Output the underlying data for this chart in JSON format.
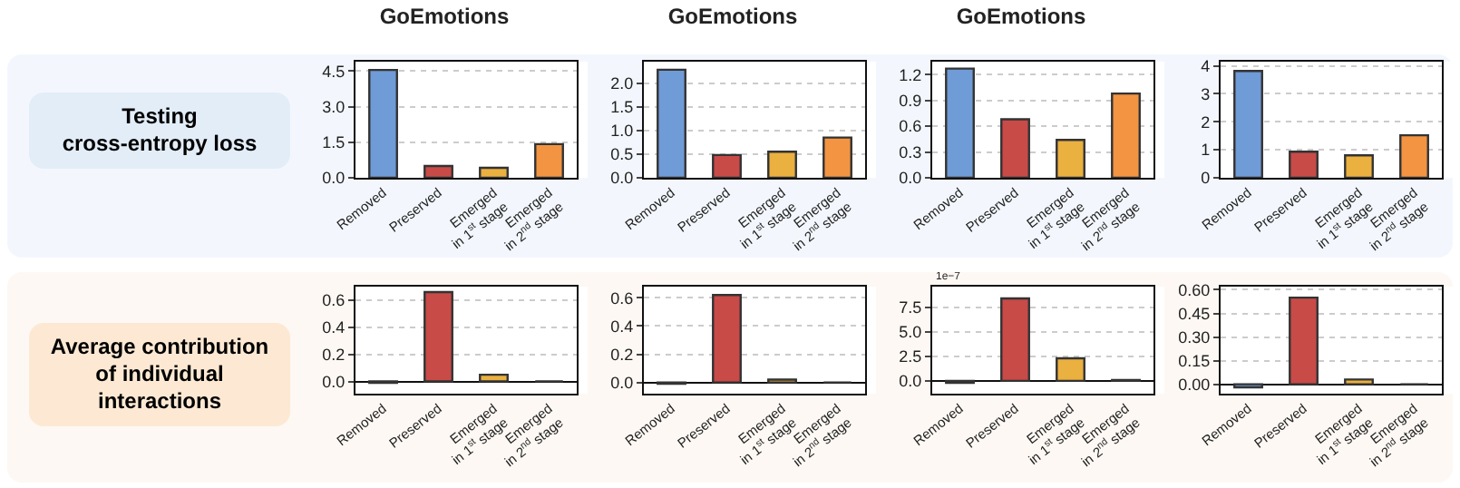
{
  "chart_data": [
    {
      "type": "bar",
      "title": "GoEmotions",
      "ylabel": "Testing\ncross-entropy loss",
      "categories": [
        "Removed",
        "Preserved",
        "Emerged\nin 1$^{st}$ stage",
        "Emerged\nin 2$^{nd}$ stage"
      ],
      "values": [
        4.55,
        0.5,
        0.42,
        1.42
      ],
      "colors": [
        "#6f9bd6",
        "#c84b48",
        "#eab040",
        "#f29442"
      ],
      "ylim": [
        0,
        4.9
      ],
      "yticks": [
        {
          "value": 0,
          "label": "0.0"
        },
        1.5,
        {
          "value": 3,
          "label": "3.0"
        },
        4.5
      ],
      "grid": "y"
    },
    {
      "type": "bar",
      "title": "GoEmotions",
      "categories": [
        "Removed",
        "Preserved",
        "Emerged\nin 1$^{st}$ stage",
        "Emerged\nin 2$^{nd}$ stage"
      ],
      "values": [
        2.28,
        0.48,
        0.55,
        0.85
      ],
      "colors": [
        "#6f9bd6",
        "#c84b48",
        "#eab040",
        "#f29442"
      ],
      "ylim": [
        0,
        2.45
      ],
      "yticks": [
        {
          "value": 0,
          "label": "0.0"
        },
        0.5,
        {
          "value": 1,
          "label": "1.0"
        },
        1.5,
        {
          "value": 2,
          "label": "2.0"
        }
      ],
      "grid": "y"
    },
    {
      "type": "bar",
      "title": "GoEmotions",
      "categories": [
        "Removed",
        "Preserved",
        "Emerged\nin 1$^{st}$ stage",
        "Emerged\nin 2$^{nd}$ stage"
      ],
      "values": [
        1.27,
        0.68,
        0.44,
        0.98
      ],
      "colors": [
        "#6f9bd6",
        "#c84b48",
        "#eab040",
        "#f29442"
      ],
      "ylim": [
        0,
        1.35
      ],
      "yticks": [
        {
          "value": 0,
          "label": "0.0"
        },
        0.3,
        0.6,
        0.9,
        1.2
      ],
      "grid": "y"
    },
    {
      "type": "bar",
      "categories": [
        "Removed",
        "Preserved",
        "Emerged\nin 1$^{st}$ stage",
        "Emerged\nin 2$^{nd}$ stage"
      ],
      "values": [
        3.82,
        0.93,
        0.8,
        1.52
      ],
      "colors": [
        "#6f9bd6",
        "#c84b48",
        "#eab040",
        "#f29442"
      ],
      "ylim": [
        0,
        4.15
      ],
      "yticks": [
        0,
        1,
        2,
        3,
        4
      ],
      "grid": "y"
    },
    {
      "type": "bar",
      "ylabel": "Average contribution\nof individual\ninteractions",
      "categories": [
        "Removed",
        "Preserved",
        "Emerged\nin 1$^{st}$ stage",
        "Emerged\nin 2$^{nd}$ stage"
      ],
      "values": [
        -0.01,
        0.66,
        0.05,
        0.0
      ],
      "colors": [
        "#6f9bd6",
        "#c84b48",
        "#eab040",
        "#333333"
      ],
      "ylim": [
        -0.09,
        0.7
      ],
      "yticks": [
        {
          "value": 0,
          "label": "0.0"
        },
        0.2,
        0.4,
        0.6
      ],
      "grid": "y"
    },
    {
      "type": "bar",
      "categories": [
        "Removed",
        "Preserved",
        "Emerged\nin 1$^{st}$ stage",
        "Emerged\nin 2$^{nd}$ stage"
      ],
      "values": [
        -0.01,
        0.62,
        0.02,
        0.0
      ],
      "colors": [
        "#6f9bd6",
        "#c84b48",
        "#eab040",
        "#333333"
      ],
      "ylim": [
        -0.08,
        0.68
      ],
      "yticks": [
        {
          "value": 0,
          "label": "0.0"
        },
        0.2,
        0.4,
        0.6
      ],
      "grid": "y"
    },
    {
      "type": "bar",
      "annotations": [
        "1e−7"
      ],
      "categories": [
        "Removed",
        "Preserved",
        "Emerged\nin 1$^{st}$ stage",
        "Emerged\nin 2$^{nd}$ stage"
      ],
      "values": [
        -0.2,
        8.4,
        2.3,
        0.1
      ],
      "colors": [
        "#6f9bd6",
        "#c84b48",
        "#eab040",
        "#f29442"
      ],
      "ylim": [
        -1.3,
        9.6
      ],
      "yticks": [
        {
          "value": 0,
          "label": "0.0"
        },
        2.5,
        {
          "value": 5,
          "label": "5.0"
        },
        7.5
      ],
      "grid": "y"
    },
    {
      "type": "bar",
      "categories": [
        "Removed",
        "Preserved",
        "Emerged\nin 1$^{st}$ stage",
        "Emerged\nin 2$^{nd}$ stage"
      ],
      "values": [
        -0.02,
        0.55,
        0.03,
        0.0
      ],
      "colors": [
        "#6f9bd6",
        "#c84b48",
        "#eab040",
        "#333333"
      ],
      "ylim": [
        -0.06,
        0.62
      ],
      "yticks": [
        {
          "value": 0,
          "label": "0.00"
        },
        0.15,
        {
          "value": 0.3,
          "label": "0.30"
        },
        0.45,
        {
          "value": 0.6,
          "label": "0.60"
        }
      ],
      "grid": "y"
    }
  ]
}
